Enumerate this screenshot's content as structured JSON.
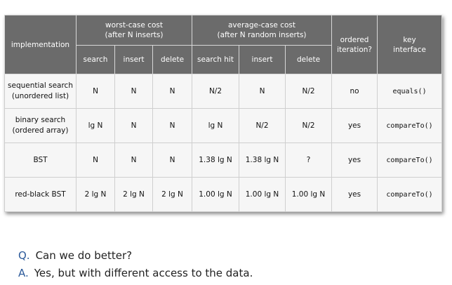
{
  "table": {
    "header": {
      "implementation": "implementation",
      "worst_case": [
        "worst-case cost",
        "(after N inserts)"
      ],
      "average_case": [
        "average-case cost",
        "(after N random inserts)"
      ],
      "ordered_iteration": [
        "ordered",
        "iteration?"
      ],
      "key_interface": [
        "key",
        "interface"
      ],
      "sub": {
        "wc_search": "search",
        "wc_insert": "insert",
        "wc_delete": "delete",
        "ac_search_hit": "search hit",
        "ac_insert": "insert",
        "ac_delete": "delete"
      }
    },
    "rows": [
      {
        "impl": [
          "sequential search",
          "(unordered list)"
        ],
        "wc_search": "N",
        "wc_insert": "N",
        "wc_delete": "N",
        "ac_search_hit": "N/2",
        "ac_insert": "N",
        "ac_delete": "N/2",
        "ordered": "no",
        "interface": "equals()"
      },
      {
        "impl": [
          "binary search",
          "(ordered array)"
        ],
        "wc_search": "lg N",
        "wc_insert": "N",
        "wc_delete": "N",
        "ac_search_hit": "lg N",
        "ac_insert": "N/2",
        "ac_delete": "N/2",
        "ordered": "yes",
        "interface": "compareTo()"
      },
      {
        "impl": [
          "BST",
          ""
        ],
        "wc_search": "N",
        "wc_insert": "N",
        "wc_delete": "N",
        "ac_search_hit": "1.38 lg N",
        "ac_insert": "1.38 lg N",
        "ac_delete": "?",
        "ordered": "yes",
        "interface": "compareTo()"
      },
      {
        "impl": [
          "red-black BST",
          ""
        ],
        "wc_search": "2 lg N",
        "wc_insert": "2 lg N",
        "wc_delete": "2 lg N",
        "ac_search_hit": "1.00 lg N",
        "ac_insert": "1.00 lg N",
        "ac_delete": "1.00 lg N",
        "ordered": "yes",
        "interface": "compareTo()"
      }
    ]
  },
  "qa": {
    "q_label": "Q.",
    "q_text": "Can we do better?",
    "a_label": "A.",
    "a_text": "Yes, but with different access to the data."
  },
  "colors": {
    "header_bg": "#6b6b6b",
    "cell_bg": "#f6f6f6",
    "qa_accent": "#2c5a9a"
  }
}
